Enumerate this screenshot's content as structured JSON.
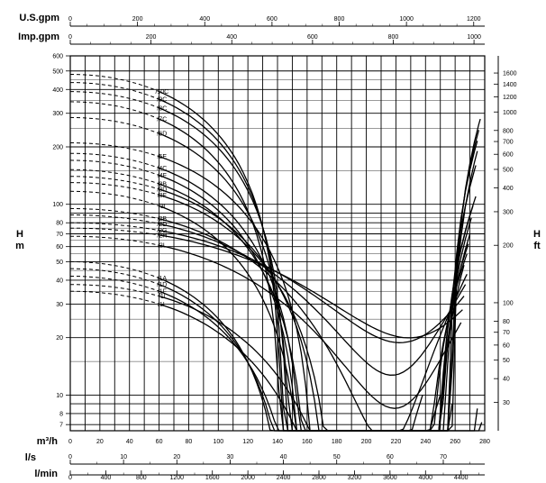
{
  "chart_data": {
    "type": "line",
    "title": "",
    "y_scale": "log",
    "x_primary": {
      "label": "m³/h",
      "range": [
        0,
        280
      ],
      "ticks": [
        0,
        20,
        40,
        60,
        80,
        100,
        120,
        140,
        160,
        180,
        200,
        220,
        240,
        260,
        280
      ]
    },
    "x_secondary": [
      {
        "label": "U.S.gpm",
        "ticks": [
          0,
          200,
          400,
          600,
          800,
          1000,
          1200
        ]
      },
      {
        "label": "Imp.gpm",
        "ticks": [
          0,
          200,
          400,
          600,
          800,
          1000
        ]
      },
      {
        "label": "l/s",
        "ticks": [
          0,
          10,
          20,
          30,
          40,
          50,
          60,
          70
        ]
      },
      {
        "label": "l/min",
        "ticks": [
          0,
          400,
          800,
          1200,
          1600,
          2000,
          2400,
          2800,
          3200,
          3600,
          4000,
          4400
        ]
      }
    ],
    "y_left": {
      "label_top": "H",
      "label_bottom": "m",
      "range": [
        6.5,
        600
      ],
      "ticks": [
        7,
        8,
        10,
        20,
        30,
        40,
        50,
        60,
        70,
        80,
        100,
        200,
        300,
        400,
        500,
        600
      ]
    },
    "y_right": {
      "label_top": "H",
      "label_bottom": "ft",
      "ticks": [
        30,
        40,
        50,
        60,
        70,
        80,
        100,
        200,
        300,
        400,
        500,
        600,
        700,
        800,
        1000,
        1200,
        1400,
        1600
      ]
    },
    "series": [
      {
        "name": "/10C",
        "shutoff_head": 480,
        "h_at_60": 390,
        "end_flow": 277,
        "end_head": 280
      },
      {
        "name": "/9C",
        "shutoff_head": 435,
        "h_at_60": 355,
        "end_flow": 276,
        "end_head": 245
      },
      {
        "name": "/8C",
        "shutoff_head": 390,
        "h_at_60": 320,
        "end_flow": 275,
        "end_head": 215
      },
      {
        "name": "/7C",
        "shutoff_head": 345,
        "h_at_60": 280,
        "end_flow": 275,
        "end_head": 190
      },
      {
        "name": "/6D",
        "shutoff_head": 285,
        "h_at_60": 235,
        "end_flow": 274,
        "end_head": 160
      },
      {
        "name": "/5E",
        "shutoff_head": 210,
        "h_at_60": 178,
        "end_flow": 274,
        "end_head": 110
      },
      {
        "name": "/4C",
        "shutoff_head": 185,
        "h_at_60": 155,
        "end_flow": 272,
        "end_head": 98
      },
      {
        "name": "/4F",
        "shutoff_head": 170,
        "h_at_60": 142,
        "end_flow": 271,
        "end_head": 85
      },
      {
        "name": "/3B",
        "shutoff_head": 152,
        "h_at_60": 128,
        "end_flow": 270,
        "end_head": 70
      },
      {
        "name": "/3D",
        "shutoff_head": 140,
        "h_at_60": 120,
        "end_flow": 269,
        "end_head": 62
      },
      {
        "name": "/3F",
        "shutoff_head": 130,
        "h_at_60": 112,
        "end_flow": 268,
        "end_head": 55
      },
      {
        "name": "/3I",
        "shutoff_head": 117,
        "h_at_60": 98,
        "end_flow": 266,
        "end_head": 48
      },
      {
        "name": "/2B",
        "shutoff_head": 95,
        "h_at_60": 84,
        "end_flow": 268,
        "end_head": 43
      },
      {
        "name": "/2D",
        "shutoff_head": 88,
        "h_at_60": 79,
        "end_flow": 267,
        "end_head": 38
      },
      {
        "name": "/2G",
        "shutoff_head": 80,
        "h_at_60": 73,
        "end_flow": 266,
        "end_head": 33
      },
      {
        "name": "/2H",
        "shutoff_head": 75,
        "h_at_60": 69,
        "end_flow": 265,
        "end_head": 28
      },
      {
        "name": "/2L",
        "shutoff_head": 68,
        "h_at_60": 61,
        "end_flow": 264,
        "end_head": 24
      },
      {
        "name": "/1A",
        "shutoff_head": 50,
        "h_at_60": 41,
        "end_flow": 278,
        "end_head": 7.2
      },
      {
        "name": "/1D",
        "shutoff_head": 46,
        "h_at_60": 38,
        "end_flow": 275,
        "end_head": 8.5
      },
      {
        "name": "/1F",
        "shutoff_head": 42,
        "h_at_60": 35,
        "end_flow": 258,
        "end_head": 9.0
      },
      {
        "name": "/1I",
        "shutoff_head": 38,
        "h_at_60": 33,
        "end_flow": 250,
        "end_head": 10.0
      },
      {
        "name": "/1L",
        "shutoff_head": 35,
        "h_at_60": 30,
        "end_flow": 238,
        "end_head": 10.0
      }
    ]
  }
}
